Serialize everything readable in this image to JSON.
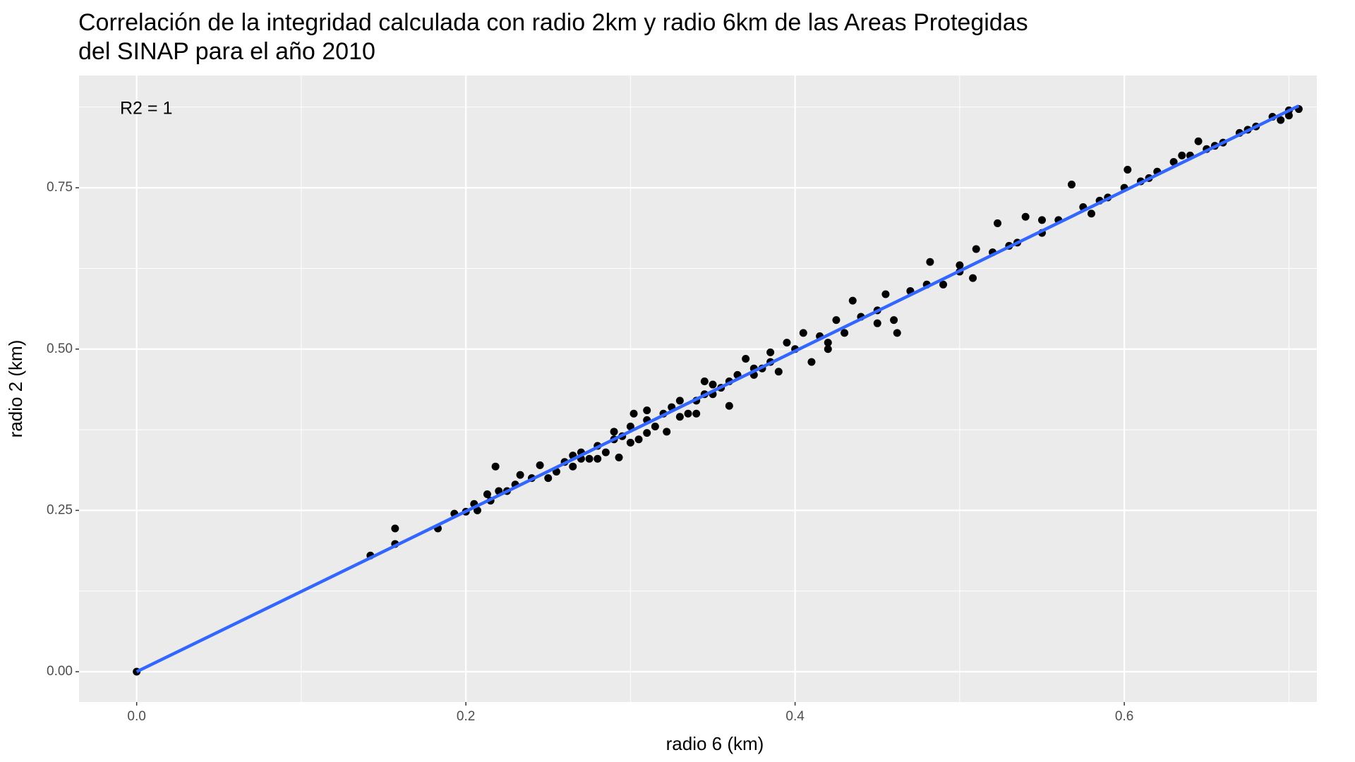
{
  "chart_data": {
    "type": "scatter",
    "title": "Correlación de la integridad calculada con radio 2km y radio 6km de las Areas Protegidas\ndel SINAP para el año 2010",
    "x_label": "radio 6 (km)",
    "y_label": "radio 2 (km)",
    "annotation": "R2 = 1",
    "xlim": [
      -0.035,
      0.717
    ],
    "ylim": [
      -0.047,
      0.924
    ],
    "xticks": [
      {
        "value": 0,
        "label": "0.0"
      },
      0.2,
      0.4,
      0.6
    ],
    "yticks": [
      {
        "value": 0,
        "label": "0.00"
      },
      0.25,
      {
        "value": 0.5,
        "label": "0.50"
      },
      0.75
    ],
    "x_minor_grid": [
      0.1,
      0.3,
      0.5,
      0.7
    ],
    "y_minor_grid": [
      0.125,
      0.375,
      0.625,
      0.875
    ],
    "grid": true,
    "series": [
      {
        "color": "#000000",
        "x": [
          0,
          0.142,
          0.157,
          0.157,
          0.183,
          0.193,
          0.2,
          0.205,
          0.207,
          0.213,
          0.215,
          0.218,
          0.22,
          0.225,
          0.23,
          0.233,
          0.24,
          0.245,
          0.25,
          0.255,
          0.26,
          0.265,
          0.27,
          0.275,
          0.28,
          0.285,
          0.29,
          0.293,
          0.295,
          0.3,
          0.302,
          0.305,
          0.31,
          0.315,
          0.32,
          0.322,
          0.33,
          0.335,
          0.34,
          0.345,
          0.35,
          0.355,
          0.36,
          0.365,
          0.37,
          0.375,
          0.38,
          0.385,
          0.39,
          0.395,
          0.4,
          0.405,
          0.41,
          0.415,
          0.42,
          0.425,
          0.43,
          0.435,
          0.44,
          0.45,
          0.455,
          0.46,
          0.462,
          0.47,
          0.48,
          0.482,
          0.49,
          0.5,
          0.508,
          0.51,
          0.52,
          0.523,
          0.53,
          0.54,
          0.55,
          0.56,
          0.568,
          0.575,
          0.585,
          0.6,
          0.602,
          0.61,
          0.62,
          0.63,
          0.64,
          0.645,
          0.65,
          0.66,
          0.67,
          0.68,
          0.69,
          0.7,
          0.706,
          0.265,
          0.28,
          0.31,
          0.325,
          0.34,
          0.35,
          0.36,
          0.375,
          0.31,
          0.3,
          0.29,
          0.27,
          0.33,
          0.345,
          0.385,
          0.42,
          0.45,
          0.5,
          0.535,
          0.55,
          0.58,
          0.59,
          0.615,
          0.635,
          0.655,
          0.675,
          0.695,
          0.7
        ],
        "values": [
          0,
          0.18,
          0.222,
          0.198,
          0.222,
          0.245,
          0.248,
          0.26,
          0.25,
          0.275,
          0.265,
          0.318,
          0.28,
          0.28,
          0.29,
          0.305,
          0.3,
          0.32,
          0.3,
          0.31,
          0.325,
          0.318,
          0.34,
          0.33,
          0.35,
          0.34,
          0.372,
          0.332,
          0.365,
          0.355,
          0.4,
          0.36,
          0.39,
          0.38,
          0.4,
          0.372,
          0.42,
          0.4,
          0.42,
          0.43,
          0.445,
          0.44,
          0.412,
          0.46,
          0.485,
          0.46,
          0.47,
          0.48,
          0.465,
          0.51,
          0.5,
          0.525,
          0.48,
          0.52,
          0.5,
          0.545,
          0.525,
          0.575,
          0.55,
          0.56,
          0.585,
          0.545,
          0.525,
          0.59,
          0.6,
          0.635,
          0.6,
          0.62,
          0.61,
          0.655,
          0.65,
          0.695,
          0.66,
          0.705,
          0.68,
          0.7,
          0.755,
          0.72,
          0.73,
          0.75,
          0.778,
          0.76,
          0.775,
          0.79,
          0.8,
          0.822,
          0.81,
          0.82,
          0.835,
          0.845,
          0.86,
          0.87,
          0.872,
          0.335,
          0.33,
          0.37,
          0.41,
          0.4,
          0.43,
          0.45,
          0.47,
          0.405,
          0.38,
          0.36,
          0.33,
          0.395,
          0.45,
          0.495,
          0.51,
          0.54,
          0.63,
          0.665,
          0.7,
          0.71,
          0.735,
          0.765,
          0.8,
          0.815,
          0.84,
          0.855,
          0.862
        ]
      }
    ],
    "trend_line": {
      "x": [
        0,
        0.706
      ],
      "y": [
        0,
        0.877
      ],
      "color": "#3366ff"
    }
  }
}
